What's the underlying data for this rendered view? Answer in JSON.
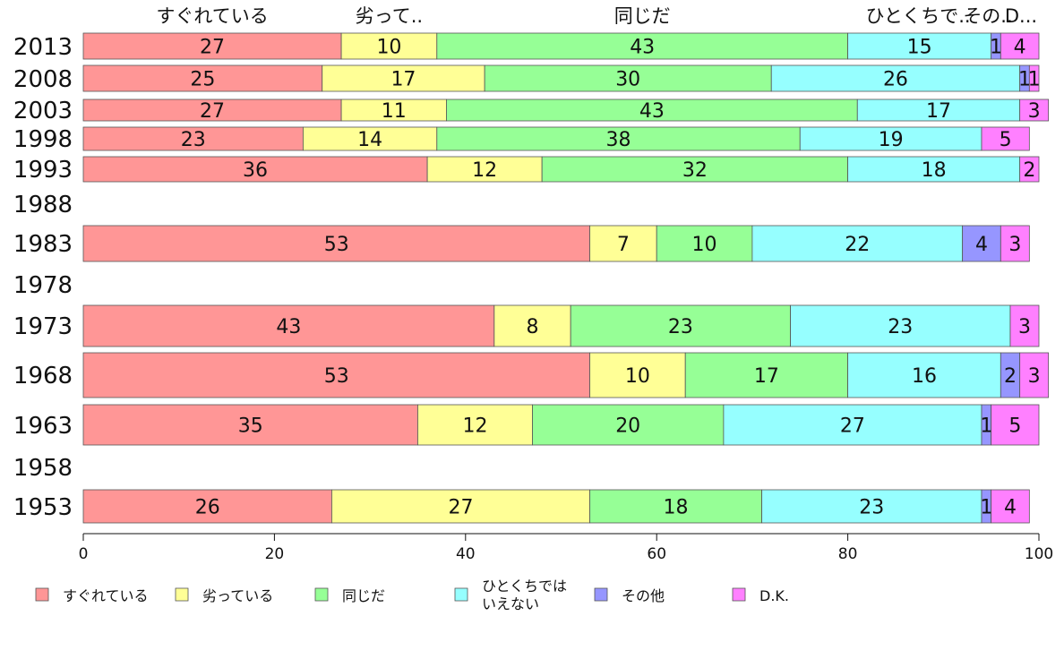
{
  "chart_data": {
    "type": "bar",
    "orientation": "horizontal",
    "stacked": true,
    "xlim": [
      0,
      100
    ],
    "x_ticks": [
      "0",
      "20",
      "40",
      "60",
      "80",
      "100"
    ],
    "grid": false,
    "legend_position": "bottom",
    "top_labels": [
      "すぐれている",
      "劣って..",
      "同じだ",
      "ひとくちで..",
      "その..",
      "D..."
    ],
    "categories": [
      "2013",
      "2008",
      "2003",
      "1998",
      "1993",
      "1988",
      "1983",
      "1978",
      "1973",
      "1968",
      "1963",
      "1958",
      "1953"
    ],
    "series": [
      {
        "name": "すぐれている",
        "color": "#ff9696",
        "values": [
          27,
          25,
          27,
          23,
          36,
          null,
          53,
          null,
          43,
          53,
          35,
          null,
          26
        ]
      },
      {
        "name": "劣っている",
        "color": "#ffff96",
        "values": [
          10,
          17,
          11,
          14,
          12,
          null,
          7,
          null,
          8,
          10,
          12,
          null,
          27
        ]
      },
      {
        "name": "同じだ",
        "color": "#96ff96",
        "values": [
          43,
          30,
          43,
          38,
          32,
          null,
          10,
          null,
          23,
          17,
          20,
          null,
          18
        ]
      },
      {
        "name": "ひとくちでは\nいえない",
        "color": "#96ffff",
        "values": [
          15,
          26,
          17,
          19,
          18,
          null,
          22,
          null,
          23,
          16,
          27,
          null,
          23
        ]
      },
      {
        "name": "その他",
        "color": "#9696ff",
        "values": [
          1,
          1,
          0,
          0,
          0,
          null,
          4,
          null,
          0,
          2,
          1,
          null,
          1
        ]
      },
      {
        "name": "D.K.",
        "color": "#ff80ff",
        "values": [
          4,
          1,
          3,
          5,
          2,
          null,
          3,
          null,
          3,
          3,
          5,
          null,
          4
        ]
      }
    ]
  }
}
